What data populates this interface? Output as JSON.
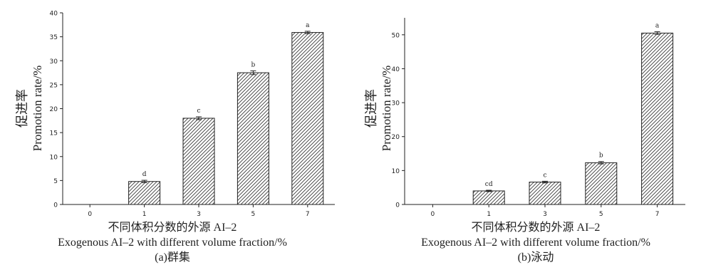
{
  "chart_data": [
    {
      "type": "bar",
      "panel": "a",
      "categories": [
        "0",
        "1",
        "3",
        "5",
        "7"
      ],
      "values": [
        0,
        4.8,
        18.0,
        27.5,
        35.9
      ],
      "errors": [
        0,
        0.25,
        0.3,
        0.4,
        0.25
      ],
      "letters": [
        "",
        "d",
        "c",
        "b",
        "a"
      ],
      "ylim": [
        0,
        40
      ],
      "yticks": [
        0,
        5,
        10,
        15,
        20,
        25,
        30,
        35,
        40
      ],
      "ylabel_cn": "促进率",
      "ylabel_en": "Promotion rate/%",
      "xlabel_cn": "不同体积分数的外源 AI–2",
      "xlabel_en": "Exogenous AI–2 with different volume fraction/%",
      "caption": "(a)群集"
    },
    {
      "type": "bar",
      "panel": "b",
      "categories": [
        "0",
        "1",
        "3",
        "5",
        "7"
      ],
      "values": [
        0,
        4.0,
        6.6,
        12.3,
        50.5
      ],
      "errors": [
        0,
        0.2,
        0.25,
        0.35,
        0.4
      ],
      "letters": [
        "",
        "cd",
        "c",
        "b",
        "a"
      ],
      "ylim": [
        0,
        55
      ],
      "yticks": [
        0,
        10,
        20,
        30,
        40,
        50
      ],
      "ylabel_cn": "促进率",
      "ylabel_en": "Promotion rate/%",
      "xlabel_cn": "不同体积分数的外源 AI–2",
      "xlabel_en": "Exogenous AI–2 with different volume fraction/%",
      "caption": "(b)泳动"
    }
  ]
}
